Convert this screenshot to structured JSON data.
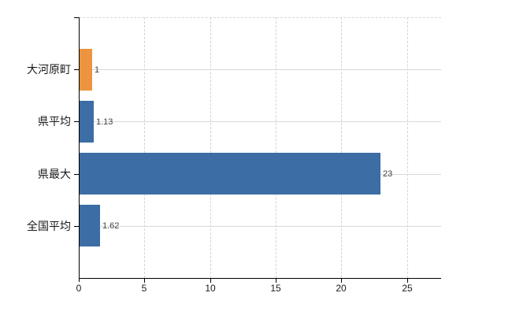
{
  "chart_data": {
    "type": "bar",
    "orientation": "horizontal",
    "title": "",
    "xlabel": "",
    "ylabel": "",
    "categories": [
      "大河原町",
      "県平均",
      "県最大",
      "全国平均"
    ],
    "values": [
      1,
      1.13,
      23,
      1.62
    ],
    "value_labels": [
      "1",
      "1.13",
      "23",
      "1.62"
    ],
    "bar_colors": [
      "#EC9440",
      "#3C6DA4",
      "#3C6DA4",
      "#3C6DA4"
    ],
    "x_ticks": [
      0,
      5,
      10,
      15,
      20,
      25
    ],
    "x_tick_labels": [
      "0",
      "5",
      "10",
      "15",
      "20",
      "25"
    ],
    "xlim": [
      0,
      27.6
    ],
    "grid": true,
    "legend_position": "none"
  },
  "colors": {
    "highlight_bar": "#EC9440",
    "default_bar": "#3C6DA4",
    "horizontal_gridline": "#D9D9D9",
    "vertical_gridline": "#D4D4D4",
    "axis_line": "#000000",
    "category_label_text": "#1A1A1A",
    "value_label_text": "#404040",
    "background": "#FFFFFF"
  }
}
